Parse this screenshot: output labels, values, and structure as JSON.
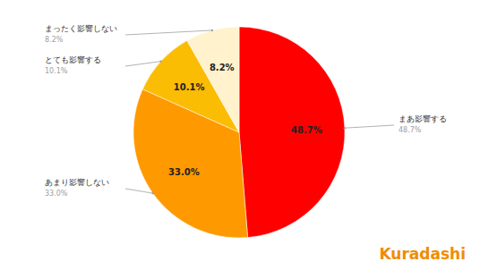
{
  "chart_data": {
    "type": "pie",
    "categories": [
      "まあ影響する",
      "あまり影響しない",
      "とても影響する",
      "まったく影響しない"
    ],
    "values": [
      48.7,
      33.0,
      10.1,
      8.2
    ],
    "value_labels": [
      "48.7%",
      "33.0%",
      "10.1%",
      "8.2%"
    ],
    "colors": [
      "#ff0000",
      "#ff9900",
      "#fbbc04",
      "#fff2cc"
    ],
    "data_labels": true
  },
  "logo": "Kuradashi"
}
